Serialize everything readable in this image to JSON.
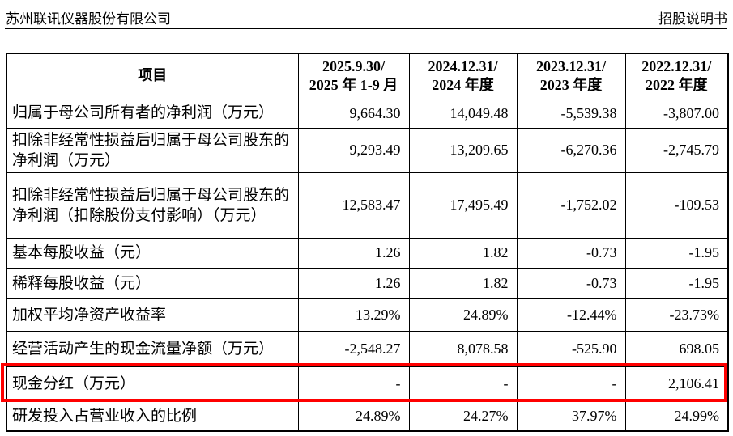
{
  "page_header": {
    "company": "苏州联讯仪器股份有限公司",
    "doc_type": "招股说明书"
  },
  "table": {
    "header": {
      "item": "项目",
      "periods": [
        {
          "date": "2025.9.30/",
          "period": "2025 年 1-9 月"
        },
        {
          "date": "2024.12.31/",
          "period": "2024 年度"
        },
        {
          "date": "2023.12.31/",
          "period": "2023 年度"
        },
        {
          "date": "2022.12.31/",
          "period": "2022 年度"
        }
      ]
    },
    "rows": [
      {
        "label": "归属于母公司所有者的净利润（万元）",
        "values": [
          "9,664.30",
          "14,049.48",
          "-5,539.38",
          "-3,807.00"
        ],
        "highlighted": false
      },
      {
        "label": "扣除非经常性损益后归属于母公司股东的净利润（万元）",
        "values": [
          "9,293.49",
          "13,209.65",
          "-6,270.36",
          "-2,745.79"
        ],
        "highlighted": false
      },
      {
        "label": "扣除非经常性损益后归属于母公司股东的净利润（扣除股份支付影响）（万元）",
        "values": [
          "12,583.47",
          "17,495.49",
          "-1,752.02",
          "-109.53"
        ],
        "highlighted": false
      },
      {
        "label": "基本每股收益（元）",
        "values": [
          "1.26",
          "1.82",
          "-0.73",
          "-1.95"
        ],
        "highlighted": false
      },
      {
        "label": "稀释每股收益（元）",
        "values": [
          "1.26",
          "1.82",
          "-0.73",
          "-1.95"
        ],
        "highlighted": false
      },
      {
        "label": "加权平均净资产收益率",
        "values": [
          "13.29%",
          "24.89%",
          "-12.44%",
          "-23.73%"
        ],
        "highlighted": false
      },
      {
        "label": "经营活动产生的现金流量净额（万元）",
        "values": [
          "-2,548.27",
          "8,078.58",
          "-525.90",
          "698.05"
        ],
        "highlighted": false
      },
      {
        "label": "现金分红（万元）",
        "values": [
          "-",
          "-",
          "-",
          "2,106.41"
        ],
        "highlighted": true
      },
      {
        "label": "研发投入占营业收入的比例",
        "values": [
          "24.89%",
          "24.27%",
          "37.97%",
          "24.99%"
        ],
        "highlighted": false
      }
    ]
  },
  "annotation": {
    "highlight_color": "#ff0000"
  }
}
